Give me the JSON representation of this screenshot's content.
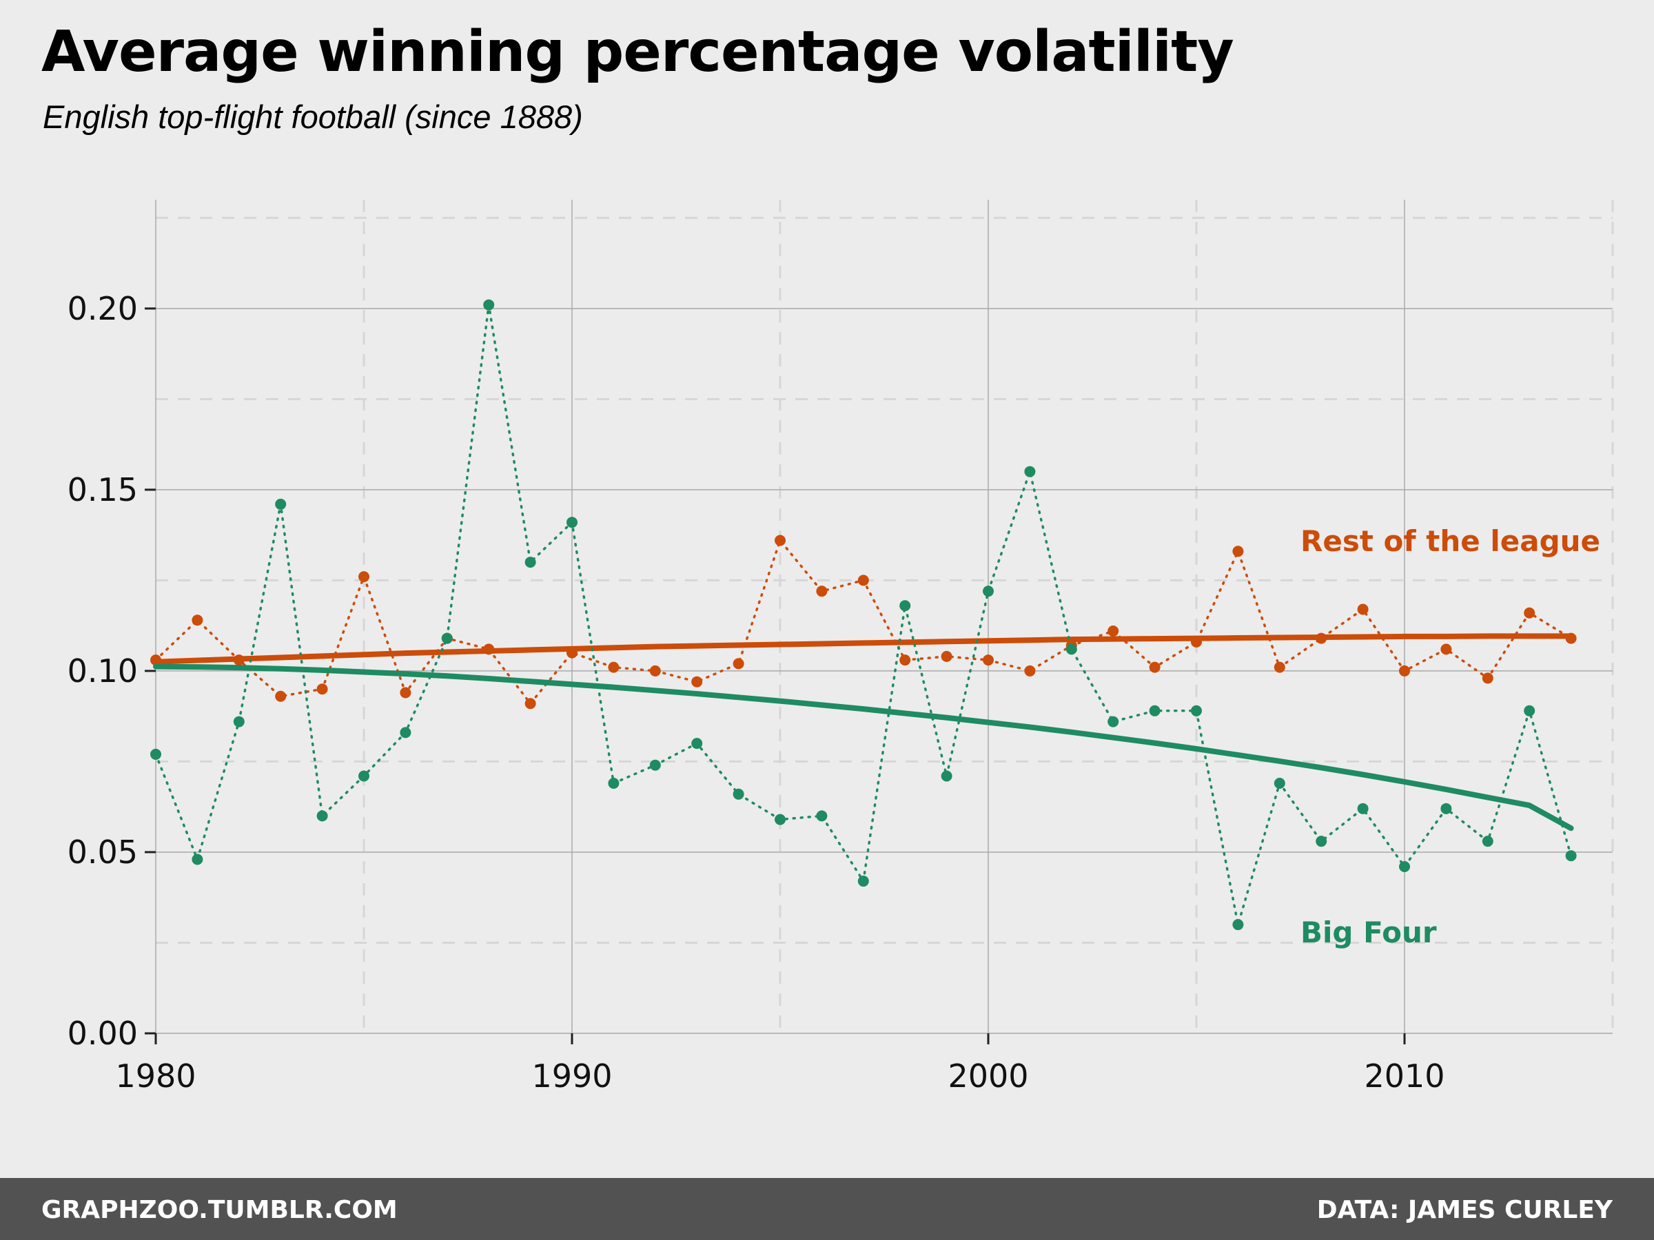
{
  "header": {
    "title": "Average winning percentage volatility",
    "subtitle": "English top-flight football (since 1888)"
  },
  "footer": {
    "left": "GRAPHZOO.TUMBLR.COM",
    "right": "DATA: JAMES CURLEY"
  },
  "chart_data": {
    "type": "line",
    "title": "Average winning percentage volatility",
    "subtitle": "English top-flight football (since 1888)",
    "xlabel": "",
    "ylabel": "",
    "xlim": [
      1980,
      2015
    ],
    "ylim": [
      0,
      0.23
    ],
    "x_ticks": [
      1980,
      1990,
      2000,
      2010
    ],
    "x_tick_labels": [
      "1980",
      "1990",
      "2000",
      "2010"
    ],
    "y_ticks": [
      0,
      0.05,
      0.1,
      0.15,
      0.2
    ],
    "y_tick_labels": [
      "0.00",
      "0.05",
      "0.10",
      "0.15",
      "0.20"
    ],
    "grid": true,
    "legend": "direct labels on the right",
    "x": [
      1980,
      1981,
      1982,
      1983,
      1984,
      1985,
      1986,
      1987,
      1988,
      1989,
      1990,
      1991,
      1992,
      1993,
      1994,
      1995,
      1996,
      1997,
      1998,
      1999,
      2000,
      2001,
      2002,
      2003,
      2004,
      2005,
      2006,
      2007,
      2008,
      2009,
      2010,
      2011,
      2012,
      2013,
      2014
    ],
    "series": [
      {
        "name": "Rest of the league",
        "color": "#cc4c0a",
        "values": [
          0.103,
          0.114,
          0.103,
          0.093,
          0.095,
          0.126,
          0.094,
          0.109,
          0.106,
          0.091,
          0.105,
          0.101,
          0.1,
          0.097,
          0.102,
          0.136,
          0.122,
          0.125,
          0.103,
          0.104,
          0.103,
          0.1,
          0.107,
          0.111,
          0.101,
          0.108,
          0.133,
          0.101,
          0.109,
          0.117,
          0.1,
          0.106,
          0.098,
          0.116,
          0.109
        ],
        "trend": [
          0.1025,
          0.1029,
          0.1033,
          0.1037,
          0.1041,
          0.1045,
          0.1049,
          0.1052,
          0.1055,
          0.1058,
          0.1061,
          0.1064,
          0.1067,
          0.1069,
          0.1071,
          0.1073,
          0.1075,
          0.1077,
          0.1079,
          0.1081,
          0.1083,
          0.1085,
          0.1087,
          0.1088,
          0.1089,
          0.109,
          0.1091,
          0.1092,
          0.1093,
          0.1094,
          0.1095,
          0.1095,
          0.1096,
          0.1096,
          0.1096
        ]
      },
      {
        "name": "Big Four",
        "color": "#1f8b62",
        "values": [
          0.077,
          0.048,
          0.086,
          0.146,
          0.06,
          0.071,
          0.083,
          0.109,
          0.201,
          0.13,
          0.141,
          0.069,
          0.074,
          0.08,
          0.066,
          0.059,
          0.06,
          0.042,
          0.118,
          0.071,
          0.122,
          0.155,
          0.106,
          0.086,
          0.089,
          0.089,
          0.03,
          0.069,
          0.053,
          0.062,
          0.046,
          0.062,
          0.053,
          0.089,
          0.049
        ],
        "trend": [
          0.1012,
          0.1011,
          0.1009,
          0.1006,
          0.1002,
          0.0997,
          0.0992,
          0.0986,
          0.0979,
          0.0971,
          0.0963,
          0.0955,
          0.0946,
          0.0937,
          0.0927,
          0.0917,
          0.0906,
          0.0895,
          0.0883,
          0.0871,
          0.0858,
          0.0845,
          0.0831,
          0.0816,
          0.0801,
          0.0785,
          0.0768,
          0.0751,
          0.0733,
          0.0714,
          0.0694,
          0.0673,
          0.0651,
          0.0629,
          0.0566
        ]
      }
    ]
  }
}
